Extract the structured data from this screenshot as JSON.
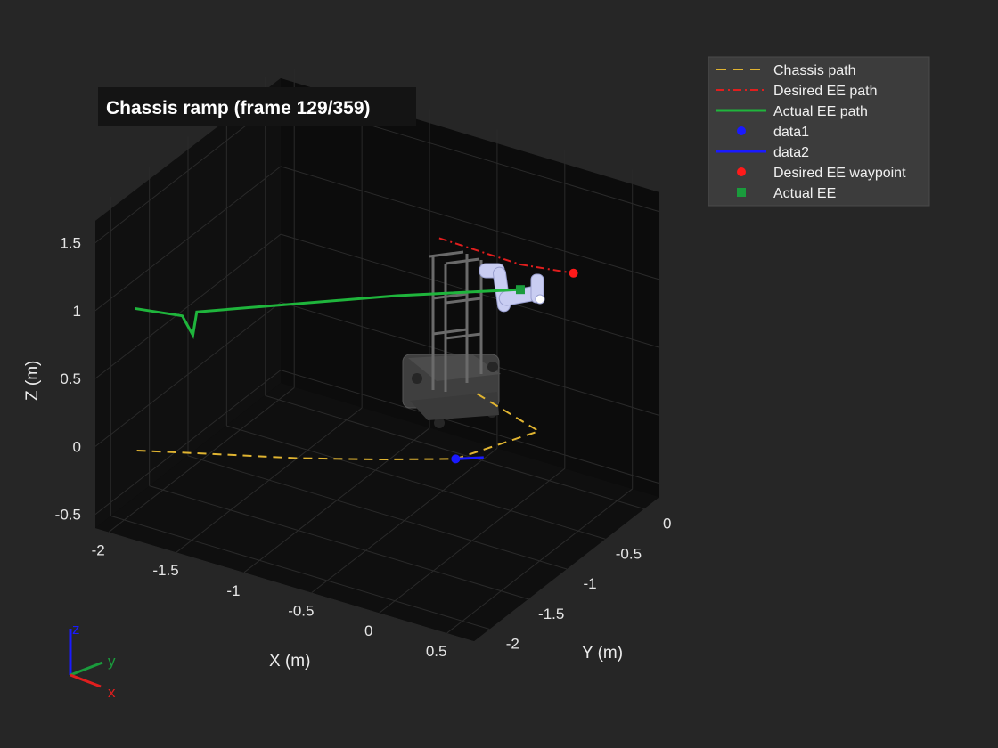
{
  "title": "Chassis ramp (frame 129/359)",
  "colors": {
    "figure_bg": "#262626",
    "axes_bg": "#0d0d0d",
    "chassis_path": "#e0b431",
    "desired_ee_path": "#e01e1e",
    "actual_ee_path": "#1fb53c",
    "data1": "#1a1aff",
    "data2": "#1a1aff",
    "desired_waypoint": "#ff1a1a",
    "actual_ee": "#1a9b3c",
    "robot_body": "#4a4a4a",
    "robot_arm": "#c9cdf2"
  },
  "chart_data": {
    "type": "line",
    "title": "Chassis ramp (frame 129/359)",
    "xlabel": "X (m)",
    "ylabel": "Y (m)",
    "zlabel": "Z (m)",
    "xlim": [
      -2.1,
      0.7
    ],
    "ylim": [
      -2.2,
      0.2
    ],
    "zlim": [
      -0.6,
      1.75
    ],
    "view": "3d perspective",
    "grid": true,
    "legend_position": "outside-top-right",
    "x_ticks": [
      "-2",
      "-1.5",
      "-1",
      "-0.5",
      "0",
      "0.5"
    ],
    "y_ticks": [
      "-2",
      "-1.5",
      "-1",
      "-0.5",
      "0"
    ],
    "z_ticks": [
      "-0.5",
      "0",
      "0.5",
      "1",
      "1.5"
    ],
    "series": [
      {
        "name": "Chassis path",
        "style": "dashed",
        "color": "#e0b431",
        "points": [
          [
            -1.85,
            -2.1,
            0.0
          ],
          [
            -1.4,
            -1.9,
            0.02
          ],
          [
            -0.9,
            -1.7,
            0.05
          ],
          [
            -0.4,
            -1.5,
            0.1
          ],
          [
            0.05,
            -1.3,
            0.15
          ],
          [
            0.35,
            -0.75,
            0.2
          ],
          [
            -0.2,
            -0.6,
            0.25
          ]
        ]
      },
      {
        "name": "Desired EE path",
        "style": "dash-dot",
        "color": "#e01e1e",
        "points": [
          [
            -0.5,
            -0.55,
            1.28
          ],
          [
            -0.1,
            -0.2,
            1.05
          ],
          [
            0.15,
            0.05,
            0.95
          ]
        ]
      },
      {
        "name": "Actual EE path",
        "style": "solid",
        "color": "#1fb53c",
        "points": [
          [
            -1.95,
            -1.95,
            0.95
          ],
          [
            -1.6,
            -1.95,
            1.0
          ],
          [
            -1.55,
            -1.9,
            0.85
          ],
          [
            -1.55,
            -1.85,
            1.0
          ],
          [
            -0.5,
            -1.1,
            1.1
          ],
          [
            0.1,
            -0.55,
            1.08
          ]
        ]
      },
      {
        "name": "data1",
        "style": "marker-circle",
        "color": "#1a1aff",
        "points": [
          [
            0.05,
            -1.3,
            0.15
          ]
        ]
      },
      {
        "name": "data2",
        "style": "solid",
        "color": "#1a1aff",
        "points": [
          [
            0.05,
            -1.3,
            0.15
          ],
          [
            0.2,
            -1.2,
            0.16
          ]
        ]
      },
      {
        "name": "Desired EE waypoint",
        "style": "marker-circle",
        "color": "#ff1a1a",
        "points": [
          [
            0.15,
            0.05,
            0.95
          ]
        ]
      },
      {
        "name": "Actual EE",
        "style": "marker-square",
        "color": "#1a9b3c",
        "points": [
          [
            0.1,
            -0.55,
            1.08
          ]
        ]
      }
    ]
  },
  "legend": [
    {
      "label": "Chassis path",
      "kind": "dash",
      "color": "#e0b431"
    },
    {
      "label": "Desired EE path",
      "kind": "dashdot",
      "color": "#e01e1e"
    },
    {
      "label": "Actual EE path",
      "kind": "line",
      "color": "#1fb53c"
    },
    {
      "label": "data1",
      "kind": "circle",
      "color": "#1a1aff"
    },
    {
      "label": "data2",
      "kind": "line",
      "color": "#1a1aff"
    },
    {
      "label": "Desired EE waypoint",
      "kind": "circle",
      "color": "#ff1a1a"
    },
    {
      "label": "Actual EE",
      "kind": "square",
      "color": "#1a9b3c"
    }
  ],
  "triad": {
    "x_label": "x",
    "y_label": "y",
    "z_label": "z",
    "x_color": "#e01e1e",
    "y_color": "#1a9b3c",
    "z_color": "#1a1aff"
  }
}
